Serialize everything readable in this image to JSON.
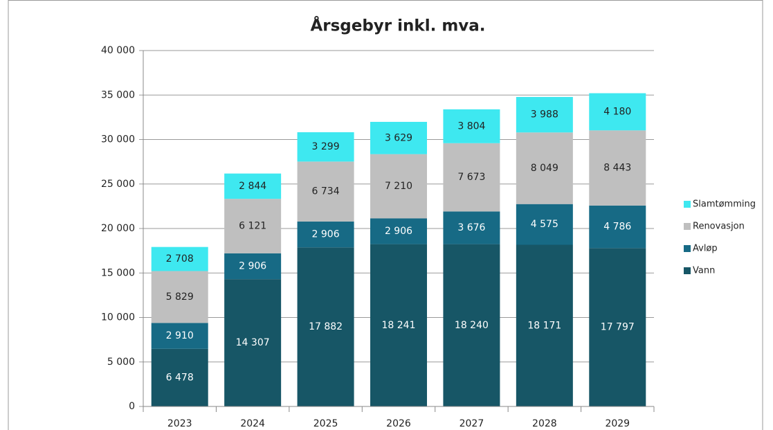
{
  "chart_data": {
    "type": "stacked_bar",
    "title": "Årsgebyr inkl. mva.",
    "categories": [
      "2023",
      "2024",
      "2025",
      "2026",
      "2027",
      "2028",
      "2029"
    ],
    "series": [
      {
        "name": "Vann",
        "color": "#175666",
        "values": [
          6478,
          14307,
          17882,
          18241,
          18240,
          18171,
          17797
        ],
        "value_labels": [
          "6 478",
          "14 307",
          "17 882",
          "18 241",
          "18 240",
          "18 171",
          "17 797"
        ]
      },
      {
        "name": "Avløp",
        "color": "#176a85",
        "values": [
          2910,
          2906,
          2906,
          2906,
          3676,
          4575,
          4786
        ],
        "value_labels": [
          "2 910",
          "2 906",
          "2 906",
          "2 906",
          "3 676",
          "4 575",
          "4 786"
        ]
      },
      {
        "name": "Renovasjon",
        "color": "#bfbfbf",
        "values": [
          5829,
          6121,
          6734,
          7210,
          7673,
          8049,
          8443
        ],
        "value_labels": [
          "5 829",
          "6 121",
          "6 734",
          "7 210",
          "7 673",
          "8 049",
          "8 443"
        ]
      },
      {
        "name": "Slamtømming",
        "color": "#3ee8f0",
        "values": [
          2708,
          2844,
          3299,
          3629,
          3804,
          3988,
          4180
        ],
        "value_labels": [
          "2 708",
          "2 844",
          "3 299",
          "3 629",
          "3 804",
          "3 988",
          "4 180"
        ]
      }
    ],
    "ylim": [
      0,
      40000
    ],
    "yticks": [
      0,
      {
        "value": 5000,
        "label": "5 000"
      },
      {
        "value": 10000,
        "label": "10 000"
      },
      {
        "value": 15000,
        "label": "15 000"
      },
      {
        "value": 20000,
        "label": "20 000"
      },
      {
        "value": 25000,
        "label": "25 000"
      },
      {
        "value": 30000,
        "label": "30 000"
      },
      {
        "value": 35000,
        "label": "35 000"
      },
      {
        "value": 40000,
        "label": "40 000"
      }
    ],
    "grid": true,
    "legend": "right"
  }
}
